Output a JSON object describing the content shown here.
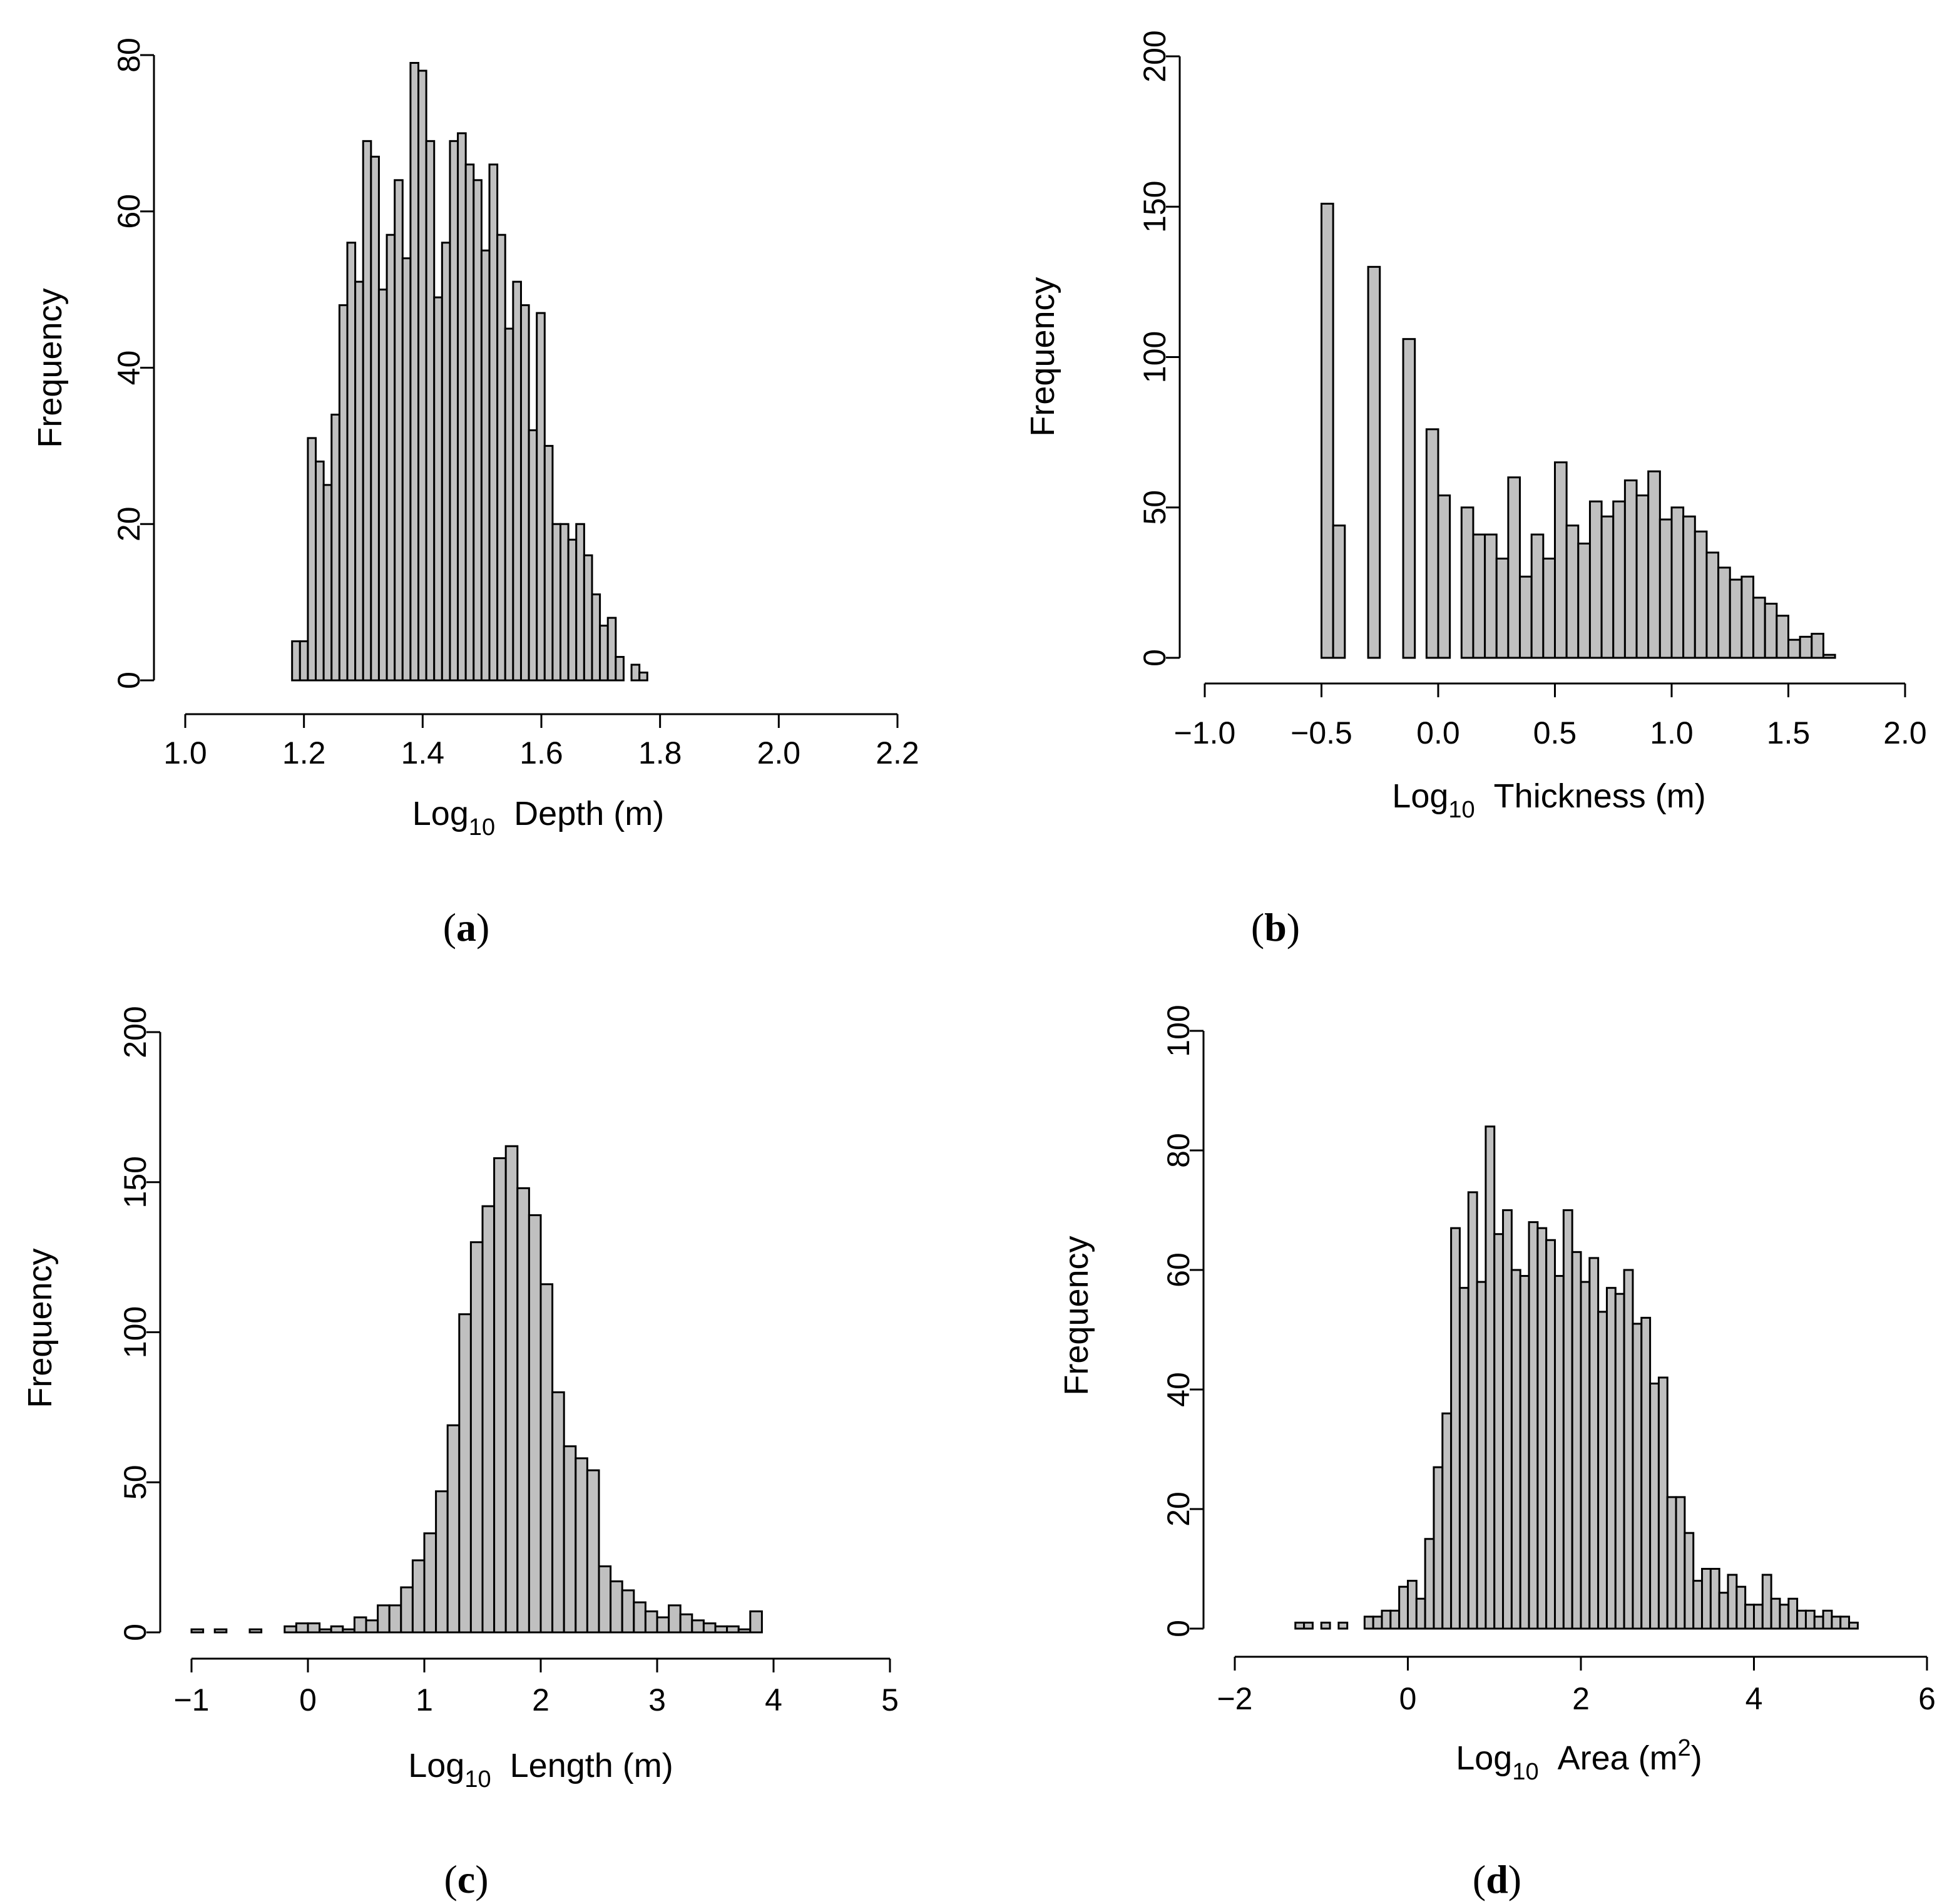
{
  "chart_data": [
    {
      "type": "bar",
      "panel": "(a)",
      "caption_letter": "a",
      "title": "",
      "xlabel": {
        "prefix": "Log",
        "subscript": "10",
        "suffix": "Depth (m)"
      },
      "ylabel": "Frequency",
      "xlim": [
        1.0,
        2.2
      ],
      "ylim": [
        0,
        80
      ],
      "xticks": [
        1.0,
        1.2,
        1.4,
        1.6,
        1.8,
        2.0,
        2.2
      ],
      "xtick_labels": [
        "1.0",
        "1.2",
        "1.4",
        "1.6",
        "1.8",
        "2.0",
        "2.2"
      ],
      "yticks": [
        0,
        20,
        40,
        60,
        80
      ],
      "ytick_labels": [
        "0",
        "20",
        "40",
        "60",
        "80"
      ],
      "bin_start": 1.18,
      "bin_width": 0.0133,
      "values": [
        5,
        5,
        31,
        28,
        25,
        34,
        48,
        56,
        51,
        69,
        67,
        50,
        57,
        64,
        54,
        79,
        78,
        69,
        49,
        56,
        69,
        70,
        66,
        64,
        55,
        66,
        57,
        45,
        51,
        48,
        32,
        47,
        30,
        20,
        20,
        18,
        20,
        16,
        11,
        7,
        8,
        3,
        0,
        2,
        1
      ]
    },
    {
      "type": "bar",
      "panel": "(b)",
      "caption_letter": "b",
      "title": "",
      "xlabel": {
        "prefix": "Log",
        "subscript": "10",
        "suffix": "Thickness (m)"
      },
      "ylabel": "Frequency",
      "xlim": [
        -1.0,
        2.0
      ],
      "ylim": [
        0,
        200
      ],
      "xticks": [
        -1.0,
        -0.5,
        0.0,
        0.5,
        1.0,
        1.5,
        2.0
      ],
      "xtick_labels": [
        "−1.0",
        "−0.5",
        "0.0",
        "0.5",
        "1.0",
        "1.5",
        "2.0"
      ],
      "yticks": [
        0,
        50,
        100,
        150,
        200
      ],
      "ytick_labels": [
        "0",
        "50",
        "100",
        "150",
        "200"
      ],
      "bin_start": -0.5,
      "bin_width": 0.05,
      "values": [
        151,
        44,
        0,
        0,
        130,
        0,
        0,
        106,
        0,
        76,
        54,
        0,
        50,
        41,
        41,
        33,
        60,
        27,
        41,
        33,
        65,
        44,
        38,
        52,
        47,
        52,
        59,
        54,
        62,
        46,
        50,
        47,
        42,
        35,
        30,
        26,
        27,
        20,
        18,
        14,
        6,
        7,
        8,
        1
      ]
    },
    {
      "type": "bar",
      "panel": "(c)",
      "caption_letter": "c",
      "title": "",
      "xlabel": {
        "prefix": "Log",
        "subscript": "10",
        "suffix": "Length (m)"
      },
      "ylabel": "Frequency",
      "xlim": [
        -1,
        5
      ],
      "ylim": [
        0,
        200
      ],
      "xticks": [
        -1,
        0,
        1,
        2,
        3,
        4,
        5
      ],
      "xtick_labels": [
        "−1",
        "0",
        "1",
        "2",
        "3",
        "4",
        "5"
      ],
      "yticks": [
        0,
        50,
        100,
        150,
        200
      ],
      "ytick_labels": [
        "0",
        "50",
        "100",
        "150",
        "200"
      ],
      "bin_start": -1.0,
      "bin_width": 0.1,
      "values": [
        1,
        0,
        1,
        0,
        0,
        1,
        0,
        0,
        2,
        3,
        3,
        1,
        2,
        1,
        5,
        4,
        9,
        9,
        15,
        24,
        33,
        47,
        69,
        106,
        130,
        142,
        158,
        162,
        148,
        139,
        116,
        80,
        62,
        58,
        54,
        22,
        17,
        14,
        10,
        7,
        5,
        9,
        6,
        4,
        3,
        2,
        2,
        1,
        7,
        0
      ]
    },
    {
      "type": "bar",
      "panel": "(d)",
      "caption_letter": "d",
      "title": "",
      "xlabel": {
        "prefix": "Log",
        "subscript": "10",
        "suffix": "Area (m",
        "sup": "2",
        "close": ")"
      },
      "ylabel": "Frequency",
      "xlim": [
        -2,
        6
      ],
      "ylim": [
        0,
        100
      ],
      "xticks": [
        -2,
        0,
        2,
        4,
        6
      ],
      "xtick_labels": [
        "−2",
        "0",
        "2",
        "4",
        "6"
      ],
      "yticks": [
        0,
        20,
        40,
        60,
        80,
        100
      ],
      "ytick_labels": [
        "0",
        "20",
        "40",
        "60",
        "80",
        "100"
      ],
      "bin_start": -1.3,
      "bin_width": 0.1,
      "values": [
        1,
        1,
        0,
        1,
        0,
        1,
        0,
        0,
        2,
        2,
        3,
        3,
        7,
        8,
        5,
        15,
        27,
        36,
        67,
        57,
        73,
        58,
        84,
        66,
        70,
        60,
        59,
        68,
        67,
        65,
        59,
        70,
        63,
        58,
        62,
        53,
        57,
        56,
        60,
        51,
        52,
        41,
        42,
        22,
        22,
        16,
        8,
        10,
        10,
        6,
        9,
        7,
        4,
        4,
        9,
        5,
        4,
        5,
        3,
        3,
        2,
        3,
        2,
        2,
        1
      ]
    }
  ]
}
